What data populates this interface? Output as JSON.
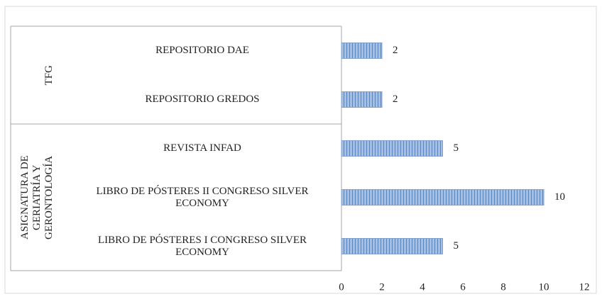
{
  "chart_data": {
    "type": "bar",
    "orientation": "horizontal",
    "color": "#a7c0e0",
    "groups": [
      {
        "label": "TFG",
        "categories": [
          "REPOSITORIO DAE",
          "REPOSITORIO GREDOS"
        ],
        "values": [
          2,
          2
        ]
      },
      {
        "label": "ASIGNATURA DE GERIATRÍA Y GERONTOLOGÍA",
        "categories": [
          "REVISTA INFAD",
          "LIBRO DE PÓSTERES II CONGRESO SILVER ECONOMY",
          "LIBRO DE PÓSTERES I CONGRESO SILVER ECONOMY"
        ],
        "values": [
          5,
          10,
          5
        ]
      }
    ],
    "xlim": [
      0,
      12
    ],
    "xticks": [
      0,
      2,
      4,
      6,
      8,
      10,
      12
    ],
    "grid": false
  }
}
